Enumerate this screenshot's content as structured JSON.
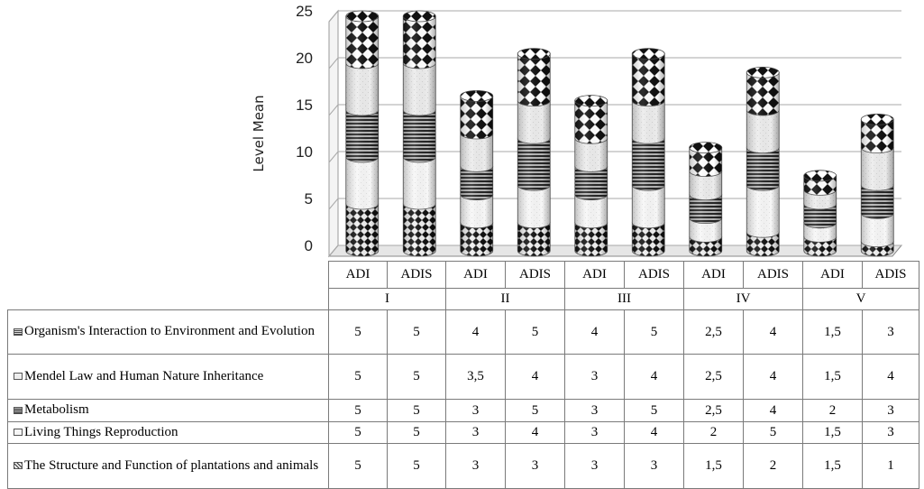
{
  "chart_data": {
    "type": "bar",
    "stacked": true,
    "style": "3d-cylinder",
    "ylabel": "Level Mean",
    "ylim": [
      0,
      25
    ],
    "yticks": [
      0,
      5,
      10,
      15,
      20,
      25
    ],
    "groups": [
      "I",
      "II",
      "III",
      "IV",
      "V"
    ],
    "categories": [
      "ADI",
      "ADIS",
      "ADI",
      "ADIS",
      "ADI",
      "ADIS",
      "ADI",
      "ADIS",
      "ADI",
      "ADIS"
    ],
    "series": [
      {
        "name": "Organism's Interaction to Environment and Evolution",
        "values": [
          "5",
          "5",
          "4",
          "5",
          "4",
          "5",
          "2,5",
          "4",
          "1,5",
          "3"
        ]
      },
      {
        "name": "Mendel Law and Human Nature Inheritance",
        "values": [
          "5",
          "5",
          "3,5",
          "4",
          "3",
          "4",
          "2,5",
          "4",
          "1,5",
          "4"
        ]
      },
      {
        "name": "Metabolism",
        "values": [
          "5",
          "5",
          "3",
          "5",
          "3",
          "5",
          "2,5",
          "4",
          "2",
          "3"
        ]
      },
      {
        "name": "Living Things Reproduction",
        "values": [
          "5",
          "5",
          "3",
          "4",
          "3",
          "4",
          "2",
          "5",
          "1,5",
          "3"
        ]
      },
      {
        "name": "The Structure and Function of plantations and animals",
        "values": [
          "5",
          "5",
          "3",
          "3",
          "3",
          "3",
          "1,5",
          "2",
          "1,5",
          "1"
        ]
      }
    ],
    "legend": "data-table-below"
  }
}
